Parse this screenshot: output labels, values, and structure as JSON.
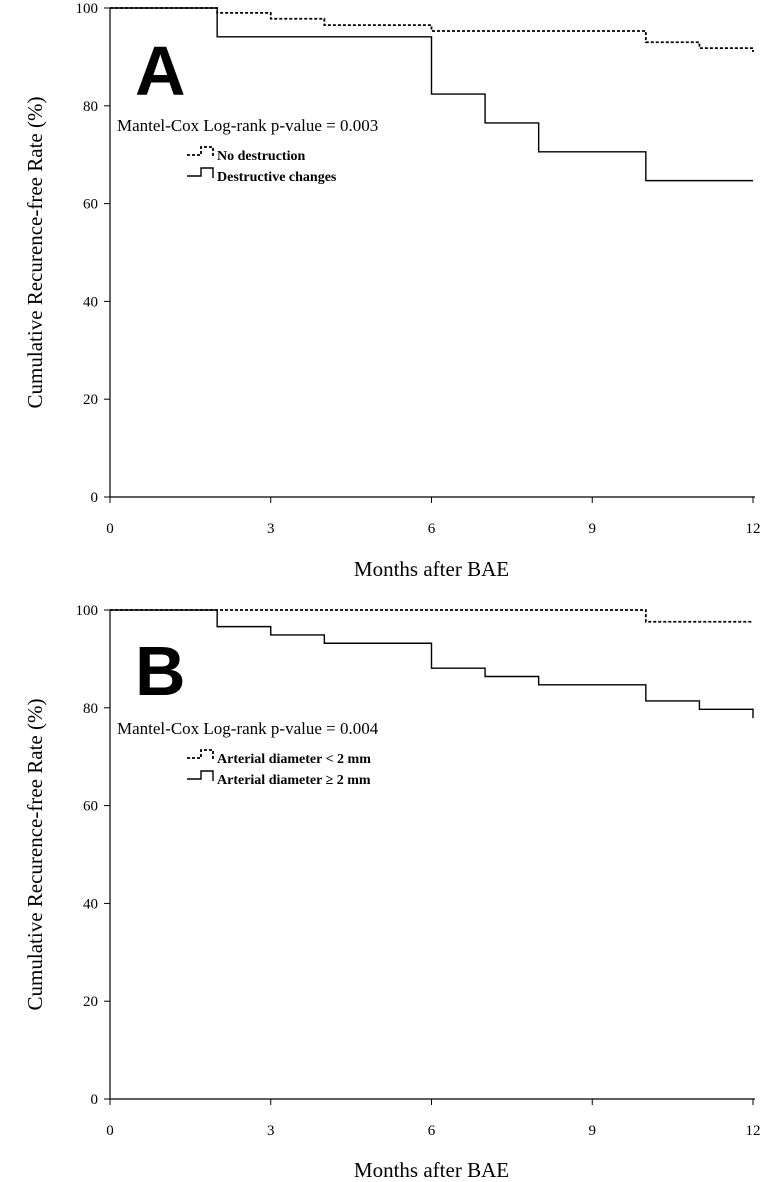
{
  "chart_data": [
    {
      "type": "line",
      "panel_label": "A",
      "title": "",
      "xlabel": "Months after BAE",
      "ylabel": "Cumulative Recurence-free Rate (%)",
      "xlim": [
        0,
        12
      ],
      "ylim": [
        0,
        100
      ],
      "xticks": [
        0,
        3,
        6,
        9,
        12
      ],
      "yticks": [
        0,
        20,
        40,
        60,
        80,
        100
      ],
      "annotation": "Mantel-Cox Log-rank p-value = 0.003",
      "legend_position": "upper-left",
      "series": [
        {
          "name": "No destruction",
          "style": "dashed",
          "steps": [
            [
              0,
              100
            ],
            [
              2,
              99
            ],
            [
              3,
              97.8
            ],
            [
              4,
              96.5
            ],
            [
              6,
              95.3
            ],
            [
              10,
              93
            ],
            [
              11,
              91.8
            ],
            [
              12,
              91
            ]
          ]
        },
        {
          "name": "Destructive changes",
          "style": "solid",
          "steps": [
            [
              0,
              100
            ],
            [
              2,
              94.1
            ],
            [
              6,
              82.4
            ],
            [
              7,
              76.5
            ],
            [
              8,
              70.6
            ],
            [
              10,
              64.7
            ],
            [
              12,
              64.7
            ]
          ]
        }
      ]
    },
    {
      "type": "line",
      "panel_label": "B",
      "title": "",
      "xlabel": "Months after BAE",
      "ylabel": "Cumulative Recurence-free Rate (%)",
      "xlim": [
        0,
        12
      ],
      "ylim": [
        0,
        100
      ],
      "xticks": [
        0,
        3,
        6,
        9,
        12
      ],
      "yticks": [
        0,
        20,
        40,
        60,
        80,
        100
      ],
      "annotation": "Mantel-Cox Log-rank p-value = 0.004",
      "legend_position": "upper-left",
      "series": [
        {
          "name": "Arterial diameter < 2 mm",
          "style": "dashed",
          "steps": [
            [
              0,
              100
            ],
            [
              10,
              97.6
            ],
            [
              12,
              97.6
            ]
          ]
        },
        {
          "name": "Arterial diameter ≥ 2 mm",
          "style": "solid",
          "steps": [
            [
              0,
              100
            ],
            [
              2,
              96.6
            ],
            [
              3,
              94.9
            ],
            [
              4,
              93.2
            ],
            [
              6,
              88.1
            ],
            [
              7,
              86.4
            ],
            [
              8,
              84.7
            ],
            [
              10,
              81.4
            ],
            [
              11,
              79.7
            ],
            [
              12,
              77.9
            ]
          ]
        }
      ]
    }
  ]
}
